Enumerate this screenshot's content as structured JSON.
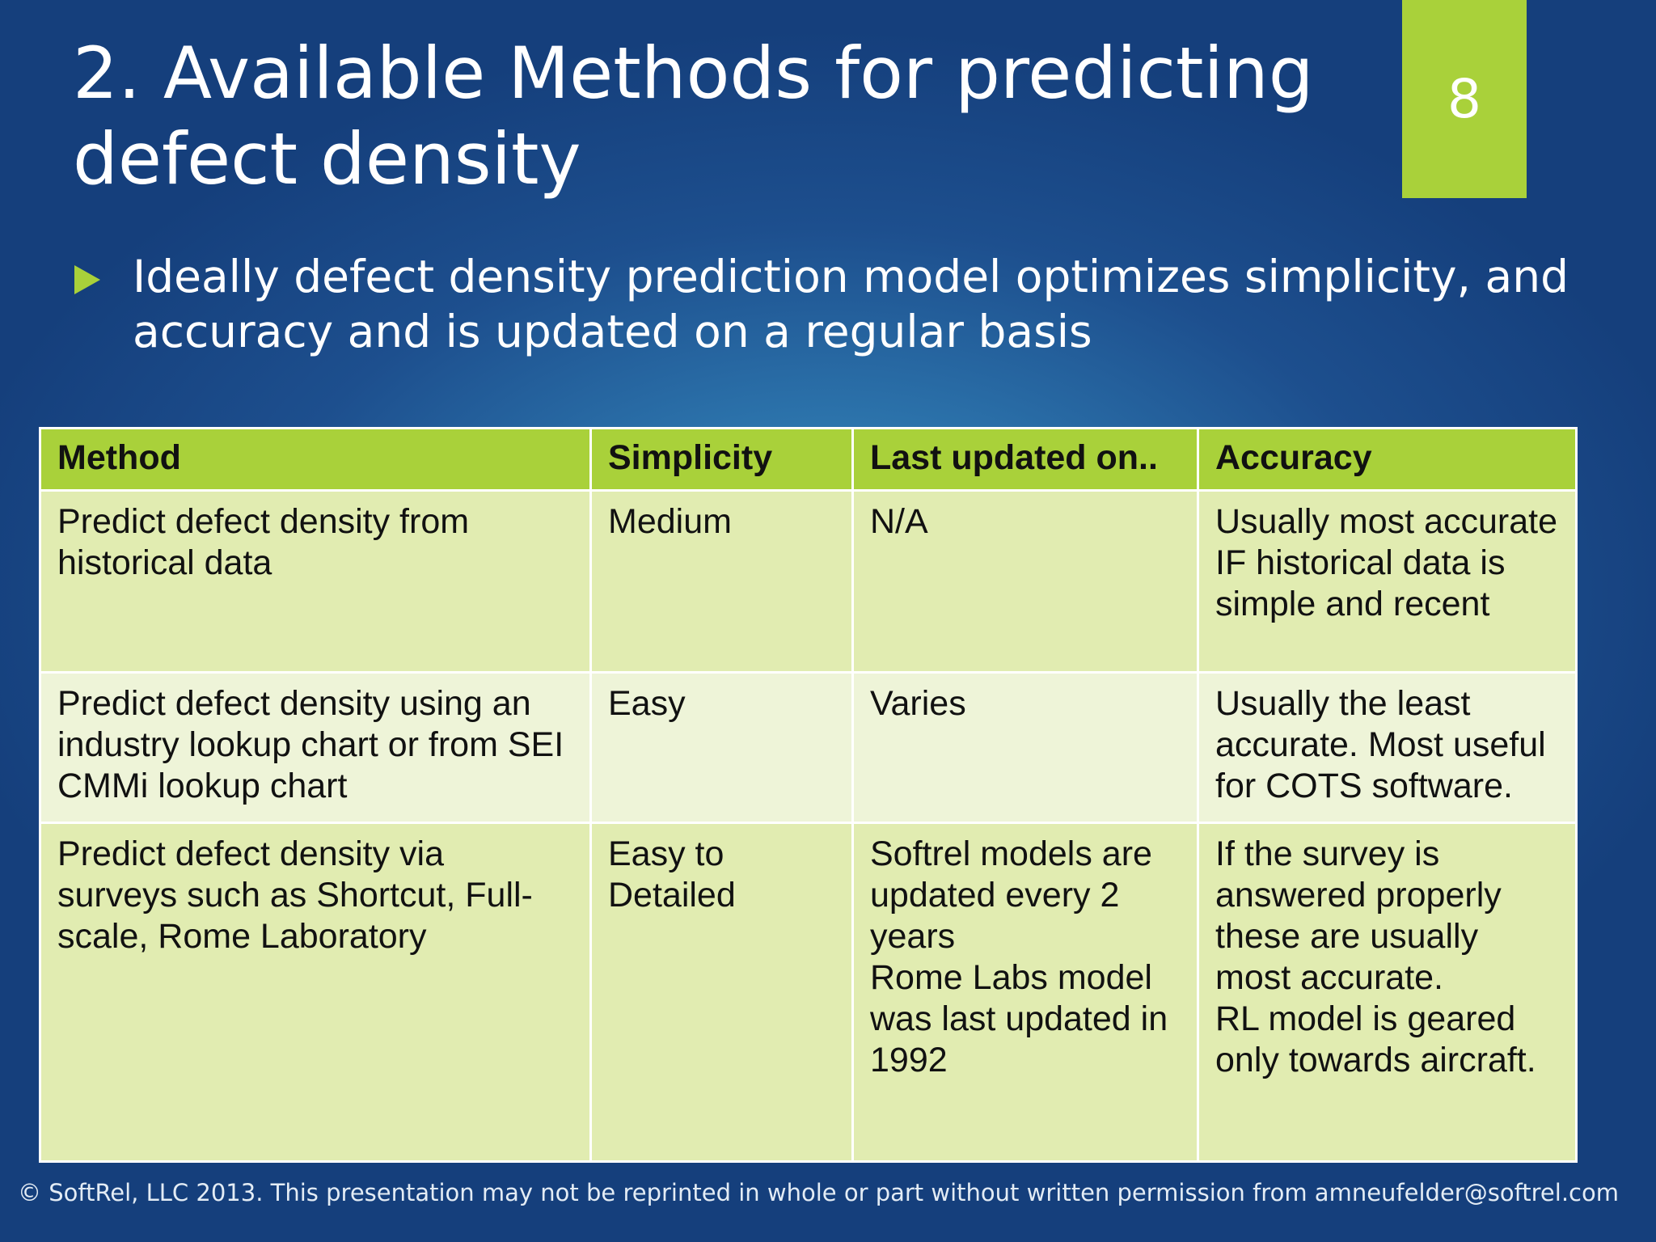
{
  "slide": {
    "title": "2. Available Methods for predicting defect density",
    "page_number": "8",
    "bullet": "Ideally defect density prediction model optimizes simplicity, and accuracy and is updated on a regular basis",
    "footer": "© SoftRel, LLC 2013.  This presentation may not be reprinted in whole or part without written permission from amneufelder@softrel.com"
  },
  "colors": {
    "accent": "#a9d13a",
    "background": "#1d4f8e",
    "row_light": "#e1ecb1",
    "row_lighter": "#eef4d8"
  },
  "table": {
    "headers": [
      "Method",
      "Simplicity",
      "Last updated on..",
      "Accuracy"
    ],
    "rows": [
      {
        "method": "Predict defect density from historical data",
        "simplicity": "Medium",
        "last_updated": "N/A",
        "accuracy": "Usually most accurate IF historical data is simple and recent"
      },
      {
        "method": "Predict defect density using an industry lookup chart or from SEI CMMi lookup chart",
        "simplicity": "Easy",
        "last_updated": "Varies",
        "accuracy": "Usually the least accurate.  Most useful for COTS software."
      },
      {
        "method": "Predict defect density via surveys such as Shortcut, Full-scale, Rome Laboratory",
        "simplicity": "Easy to Detailed",
        "last_updated": "Softrel models are updated every 2 years\nRome Labs model was last updated in 1992",
        "accuracy": "If the survey is answered properly these are usually most accurate.\nRL model is geared only towards aircraft."
      }
    ]
  }
}
